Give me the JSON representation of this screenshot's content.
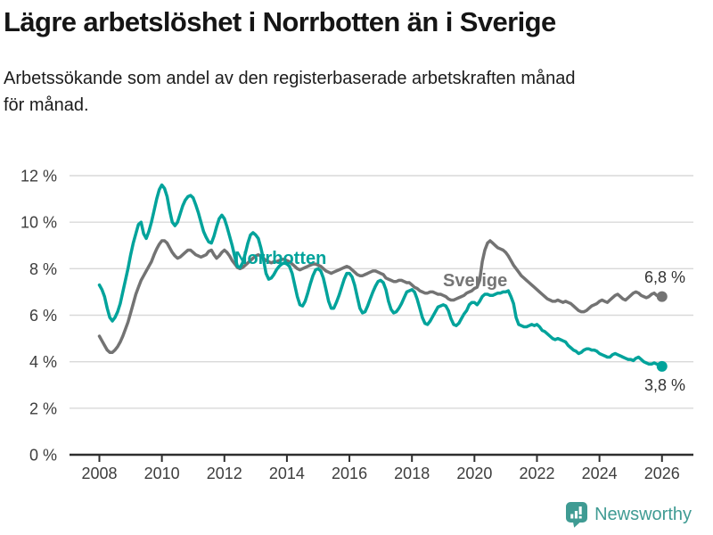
{
  "header": {
    "title": "Lägre arbetslöshet i Norrbotten än i Sverige",
    "subtitle_line1": "Arbetssökande som andel av den registerbaserade arbetskraften månad",
    "subtitle_line2": "för månad."
  },
  "footer": {
    "brand": "Newsworthy",
    "brand_color": "#3F9B93",
    "logo_icon": "newsworthy-speech-bubble-bar-chart-icon"
  },
  "chart_data": {
    "type": "line",
    "title": "Lägre arbetslöshet i Norrbotten än i Sverige",
    "xlabel": "",
    "ylabel": "",
    "unit": "%",
    "grid": "horizontal",
    "legend_position": "inline-annotations",
    "x_start_year": 2008,
    "x_step_months": 1,
    "x_end_year": 2026,
    "ylim": [
      0,
      12
    ],
    "yticks": [
      {
        "value": 0,
        "label": "0 %"
      },
      {
        "value": 2,
        "label": "2 %"
      },
      {
        "value": 4,
        "label": "4 %"
      },
      {
        "value": 6,
        "label": "6 %"
      },
      {
        "value": 8,
        "label": "8 %"
      },
      {
        "value": 10,
        "label": "10 %"
      },
      {
        "value": 12,
        "label": "12 %"
      }
    ],
    "xticks": [
      {
        "value": 2008,
        "label": "2008"
      },
      {
        "value": 2010,
        "label": "2010"
      },
      {
        "value": 2012,
        "label": "2012"
      },
      {
        "value": 2014,
        "label": "2014"
      },
      {
        "value": 2016,
        "label": "2016"
      },
      {
        "value": 2018,
        "label": "2018"
      },
      {
        "value": 2020,
        "label": "2020"
      },
      {
        "value": 2022,
        "label": "2022"
      },
      {
        "value": 2024,
        "label": "2024"
      },
      {
        "value": 2026,
        "label": "2026"
      }
    ],
    "colors": {
      "norrbotten": "#00A39B",
      "sverige": "#737373",
      "gridline": "#d9d9d9",
      "axis": "#2e2e2e",
      "tick_label": "#3d3d3d",
      "end_label": "#333333"
    },
    "series": [
      {
        "name": "Sverige",
        "color": "#737373",
        "label_color": "#757575",
        "end_label": "6,8 %",
        "end_value": 6.8,
        "values": [
          5.1,
          4.9,
          4.7,
          4.5,
          4.4,
          4.4,
          4.5,
          4.65,
          4.85,
          5.1,
          5.4,
          5.7,
          6.1,
          6.5,
          6.9,
          7.2,
          7.5,
          7.7,
          7.9,
          8.1,
          8.3,
          8.6,
          8.85,
          9.05,
          9.2,
          9.2,
          9.1,
          8.9,
          8.7,
          8.55,
          8.45,
          8.5,
          8.6,
          8.7,
          8.8,
          8.8,
          8.7,
          8.6,
          8.55,
          8.5,
          8.55,
          8.6,
          8.75,
          8.8,
          8.6,
          8.45,
          8.55,
          8.7,
          8.8,
          8.7,
          8.55,
          8.35,
          8.2,
          8.05,
          8.0,
          8.05,
          8.15,
          8.25,
          8.35,
          8.45,
          8.55,
          8.6,
          8.55,
          8.45,
          8.35,
          8.3,
          8.25,
          8.3,
          8.3,
          8.35,
          8.4,
          8.4,
          8.35,
          8.3,
          8.2,
          8.1,
          8.0,
          7.95,
          8.0,
          8.05,
          8.1,
          8.15,
          8.2,
          8.2,
          8.15,
          8.1,
          8.0,
          7.9,
          7.85,
          7.8,
          7.85,
          7.9,
          7.95,
          8.0,
          8.05,
          8.1,
          8.05,
          7.95,
          7.85,
          7.75,
          7.7,
          7.7,
          7.75,
          7.8,
          7.85,
          7.9,
          7.9,
          7.85,
          7.8,
          7.75,
          7.6,
          7.55,
          7.5,
          7.45,
          7.45,
          7.5,
          7.5,
          7.45,
          7.4,
          7.4,
          7.3,
          7.2,
          7.15,
          7.05,
          7.0,
          6.95,
          6.95,
          7.0,
          7.0,
          6.95,
          6.9,
          6.9,
          6.85,
          6.8,
          6.7,
          6.65,
          6.65,
          6.7,
          6.75,
          6.8,
          6.85,
          6.95,
          7.0,
          7.05,
          7.15,
          7.2,
          7.5,
          8.3,
          8.8,
          9.1,
          9.2,
          9.1,
          9.0,
          8.9,
          8.85,
          8.8,
          8.7,
          8.55,
          8.35,
          8.15,
          8.0,
          7.85,
          7.7,
          7.6,
          7.5,
          7.4,
          7.3,
          7.2,
          7.1,
          7.0,
          6.9,
          6.8,
          6.7,
          6.65,
          6.6,
          6.6,
          6.65,
          6.6,
          6.55,
          6.6,
          6.55,
          6.5,
          6.4,
          6.3,
          6.2,
          6.15,
          6.15,
          6.2,
          6.3,
          6.4,
          6.45,
          6.5,
          6.6,
          6.65,
          6.6,
          6.55,
          6.65,
          6.75,
          6.85,
          6.9,
          6.8,
          6.7,
          6.65,
          6.75,
          6.85,
          6.95,
          7.0,
          6.95,
          6.85,
          6.8,
          6.75,
          6.8,
          6.9,
          6.95,
          6.85,
          6.8,
          6.8
        ]
      },
      {
        "name": "Norrbotten",
        "color": "#00A39B",
        "label_color": "#00A39B",
        "end_label": "3,8 %",
        "end_value": 3.8,
        "values": [
          7.3,
          7.1,
          6.8,
          6.3,
          5.9,
          5.75,
          5.9,
          6.15,
          6.5,
          7.0,
          7.5,
          8.0,
          8.6,
          9.1,
          9.5,
          9.9,
          10.0,
          9.5,
          9.3,
          9.6,
          10.0,
          10.5,
          11.0,
          11.4,
          11.6,
          11.45,
          11.1,
          10.5,
          10.0,
          9.85,
          10.0,
          10.35,
          10.7,
          10.95,
          11.1,
          11.15,
          11.05,
          10.75,
          10.4,
          10.0,
          9.6,
          9.35,
          9.15,
          9.1,
          9.4,
          9.8,
          10.15,
          10.3,
          10.15,
          9.8,
          9.4,
          9.0,
          8.5,
          8.1,
          8.05,
          8.25,
          8.65,
          9.1,
          9.45,
          9.55,
          9.45,
          9.3,
          8.9,
          8.4,
          7.8,
          7.55,
          7.6,
          7.75,
          7.95,
          8.1,
          8.2,
          8.25,
          8.2,
          8.1,
          7.8,
          7.3,
          6.8,
          6.45,
          6.4,
          6.6,
          6.95,
          7.35,
          7.7,
          7.95,
          8.0,
          7.9,
          7.6,
          7.1,
          6.6,
          6.3,
          6.3,
          6.55,
          6.85,
          7.2,
          7.55,
          7.8,
          7.8,
          7.65,
          7.3,
          6.8,
          6.3,
          6.1,
          6.15,
          6.4,
          6.7,
          7.0,
          7.25,
          7.45,
          7.5,
          7.4,
          7.1,
          6.6,
          6.25,
          6.1,
          6.15,
          6.3,
          6.5,
          6.75,
          7.0,
          7.05,
          7.1,
          7.0,
          6.7,
          6.3,
          5.9,
          5.65,
          5.6,
          5.75,
          5.95,
          6.15,
          6.35,
          6.4,
          6.45,
          6.4,
          6.2,
          5.85,
          5.6,
          5.55,
          5.65,
          5.85,
          6.05,
          6.2,
          6.45,
          6.55,
          6.55,
          6.45,
          6.6,
          6.8,
          6.9,
          6.9,
          6.85,
          6.85,
          6.9,
          6.95,
          6.95,
          7.0,
          7.0,
          7.05,
          6.8,
          6.5,
          5.9,
          5.6,
          5.55,
          5.5,
          5.5,
          5.55,
          5.6,
          5.55,
          5.6,
          5.5,
          5.35,
          5.3,
          5.2,
          5.1,
          5.0,
          4.95,
          5.0,
          4.95,
          4.9,
          4.85,
          4.7,
          4.6,
          4.5,
          4.45,
          4.35,
          4.4,
          4.5,
          4.55,
          4.55,
          4.5,
          4.5,
          4.45,
          4.35,
          4.3,
          4.25,
          4.2,
          4.2,
          4.3,
          4.35,
          4.3,
          4.25,
          4.2,
          4.15,
          4.1,
          4.1,
          4.05,
          4.15,
          4.2,
          4.1,
          4.0,
          3.95,
          3.9,
          3.9,
          3.95,
          3.9,
          3.85,
          3.8
        ]
      }
    ]
  }
}
